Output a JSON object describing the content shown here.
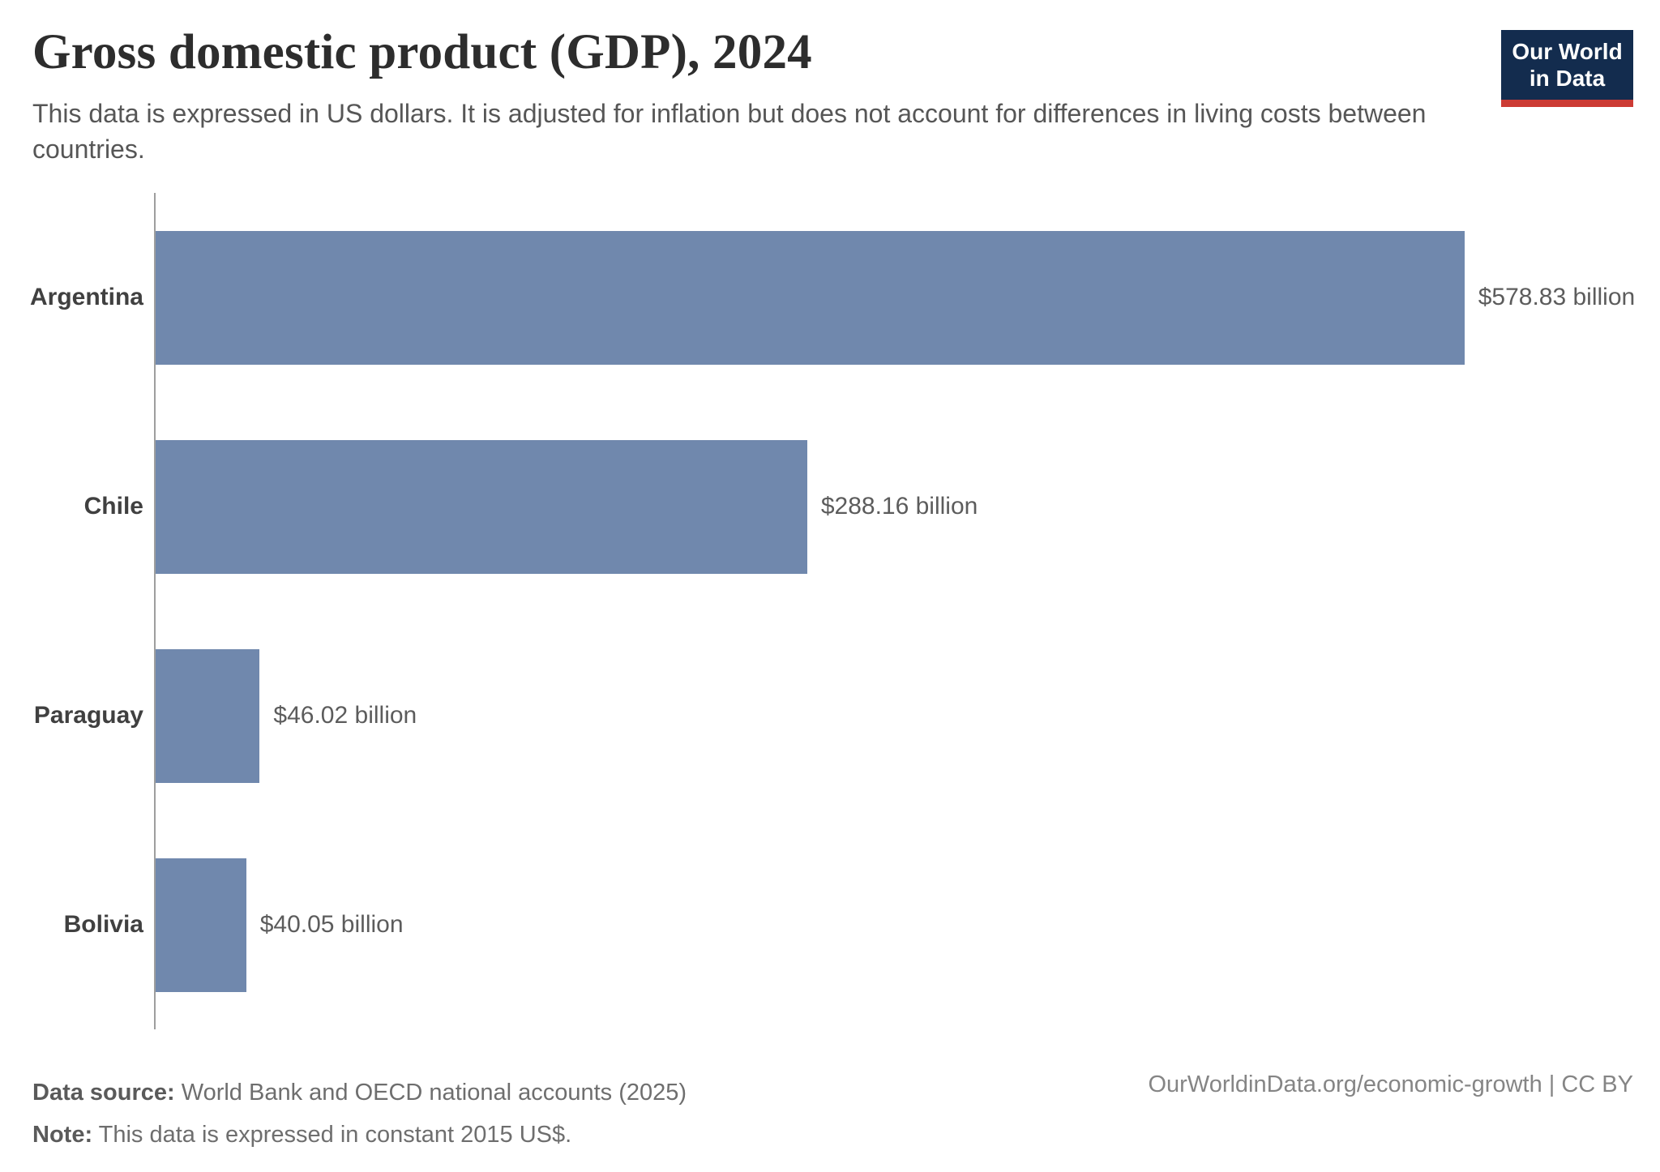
{
  "title": "Gross domestic product (GDP), 2024",
  "subtitle": "This data is expressed in US dollars. It is adjusted for inflation but does not account for differences in living costs between countries.",
  "logo": {
    "line1": "Our World",
    "line2": "in Data"
  },
  "chart_data": {
    "type": "bar",
    "orientation": "horizontal",
    "title": "Gross domestic product (GDP), 2024",
    "categories": [
      "Argentina",
      "Chile",
      "Paraguay",
      "Bolivia"
    ],
    "values": [
      578.83,
      288.16,
      46.02,
      40.05
    ],
    "value_labels": [
      "$578.83 billion",
      "$288.16 billion",
      "$46.02 billion",
      "$40.05 billion"
    ],
    "unit": "billion US$ (constant 2015 US$)",
    "xlim": [
      0,
      578.83
    ],
    "grid": false,
    "bar_color": "#7088ad",
    "axis_color": "#9e9e9e"
  },
  "footer": {
    "datasource_label": "Data source:",
    "datasource_value": " World Bank and OECD national accounts (2025)",
    "note_label": "Note:",
    "note_value": " This data is expressed in constant 2015 US$.",
    "link": "OurWorldinData.org/economic-growth | CC BY"
  },
  "colors": {
    "bar": "#7088ad",
    "axis": "#9e9e9e",
    "logo_navy": "#132c4e",
    "logo_red": "#cc3b34"
  }
}
